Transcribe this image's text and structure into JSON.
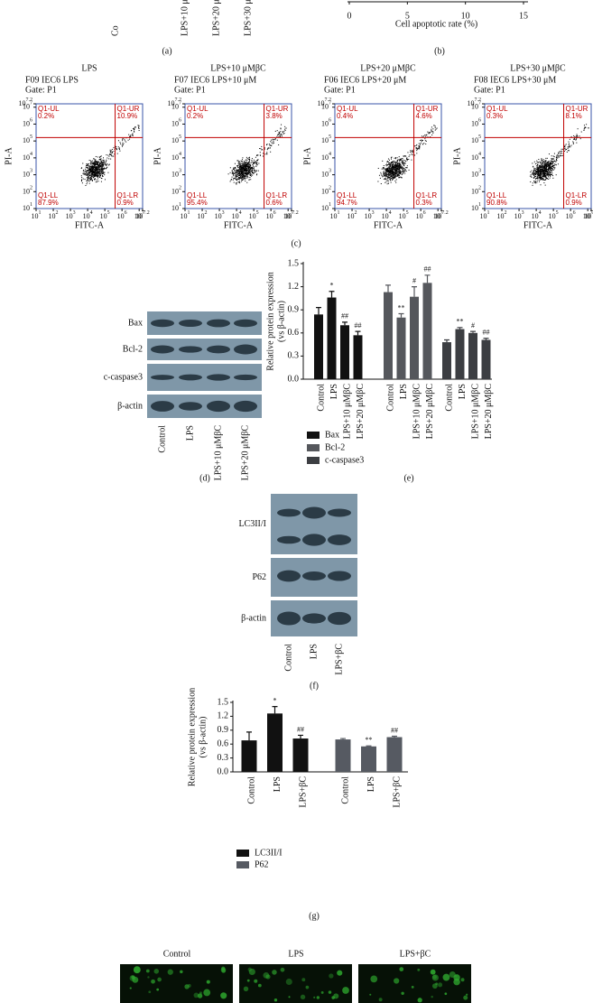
{
  "panel_labels": [
    "(a)",
    "(b)",
    "(c)",
    "(d)",
    "(e)",
    "(f)",
    "(g)"
  ],
  "panel_a": {
    "labels": [
      "Co",
      "LPS+10 μ",
      "LPS+20 μ",
      "LPS+30 μ"
    ]
  },
  "flow": {
    "xlabel": "FITC-A",
    "ylabel": "PI-A",
    "base": "10",
    "ticks": [
      1,
      2,
      3,
      4,
      5,
      6,
      7,
      7.2
    ],
    "lim": [
      1,
      7.2
    ],
    "quadrant_names": [
      "Q1-UL",
      "Q1-UR",
      "Q1-LL",
      "Q1-LR"
    ],
    "panels": [
      {
        "title": "LPS",
        "sample": "F09 IEC6 LPS",
        "gate": "Gate: P1",
        "quadrants": [
          "0.2%",
          "10.9%",
          "87.9%",
          "0.9%"
        ]
      },
      {
        "title": "LPS+10 μMβC",
        "sample": "F07 IEC6 LPS+10 μM",
        "gate": "Gate: P1",
        "quadrants": [
          "0.2%",
          "3.8%",
          "95.4%",
          "0.6%"
        ]
      },
      {
        "title": "LPS+20 μMβC",
        "sample": "F06 IEC6 LPS+20 μM",
        "gate": "Gate: P1",
        "quadrants": [
          "0.4%",
          "4.6%",
          "94.7%",
          "0.3%"
        ]
      },
      {
        "title": "LPS+30 μMβC",
        "sample": "F08 IEC6 LPS+30 μM",
        "gate": "Gate: P1",
        "quadrants": [
          "0.3%",
          "8.1%",
          "90.8%",
          "0.9%"
        ]
      }
    ]
  },
  "blot_d": {
    "rows": [
      "Bax",
      "Bcl-2",
      "c-caspase3",
      "β-actin"
    ],
    "lanes": [
      "Control",
      "LPS",
      "LPS+10 μMβC",
      "LPS+20 μMβC"
    ]
  },
  "blot_f": {
    "rows": [
      "LC3II/I",
      "P62",
      "β-actin"
    ],
    "lanes": [
      "Control",
      "LPS",
      "LPS+βC"
    ]
  },
  "fluorescence": {
    "labels": [
      "Control",
      "LPS",
      "LPS+βC"
    ]
  },
  "chart_data": [
    {
      "type": "barh",
      "xlabel": "Cell apoptotic rate (%)",
      "xlim": [
        0,
        15
      ],
      "xticks": [
        0,
        5,
        10,
        15
      ]
    },
    {
      "type": "bar",
      "ylabel": [
        "Relative protein expression",
        "(vs β-actin)"
      ],
      "categories": [
        "Control",
        "LPS",
        "LPS+10 μMβC",
        "LPS+20 μMβC"
      ],
      "ylim": [
        0,
        1.5
      ],
      "yticks": [
        {
          "value": 0,
          "label": "0.0"
        },
        0.3,
        0.6,
        0.9,
        1.2,
        1.5
      ],
      "series": [
        {
          "name": "Bax",
          "color": "#111111",
          "values": [
            0.84,
            1.06,
            0.7,
            0.57
          ],
          "errors": [
            0.09,
            0.08,
            0.04,
            0.05
          ],
          "significance": [
            null,
            "*",
            "##",
            "##"
          ]
        },
        {
          "name": "Bcl-2",
          "color": "#55575c",
          "values": [
            1.13,
            0.8,
            1.07,
            1.25
          ],
          "errors": [
            0.09,
            0.05,
            0.13,
            0.1
          ],
          "significance": [
            null,
            "**",
            "#",
            "##"
          ]
        },
        {
          "name": "c-caspase3",
          "color": "#3c3e42",
          "values": [
            0.48,
            0.65,
            0.6,
            0.51
          ],
          "errors": [
            0.03,
            0.02,
            0.02,
            0.02
          ],
          "significance": [
            null,
            "**",
            "#",
            "##"
          ]
        }
      ]
    },
    {
      "type": "bar",
      "ylabel": [
        "Relative protein expression",
        "(vs β-actin)"
      ],
      "categories": [
        "Control",
        "LPS",
        "LPS+βC"
      ],
      "ylim": [
        0,
        1.5
      ],
      "yticks": [
        {
          "value": 0,
          "label": "0.0"
        },
        0.3,
        0.6,
        0.9,
        1.2,
        1.5
      ],
      "series": [
        {
          "name": "LC3II/I",
          "color": "#111111",
          "values": [
            0.68,
            1.26,
            0.72
          ],
          "errors": [
            0.18,
            0.15,
            0.07
          ],
          "significance": [
            null,
            "*",
            "##"
          ]
        },
        {
          "name": "P62",
          "color": "#565a62",
          "values": [
            0.7,
            0.55,
            0.75
          ],
          "errors": [
            0.02,
            0.01,
            0.02
          ],
          "significance": [
            null,
            "**",
            "##"
          ]
        }
      ]
    }
  ]
}
